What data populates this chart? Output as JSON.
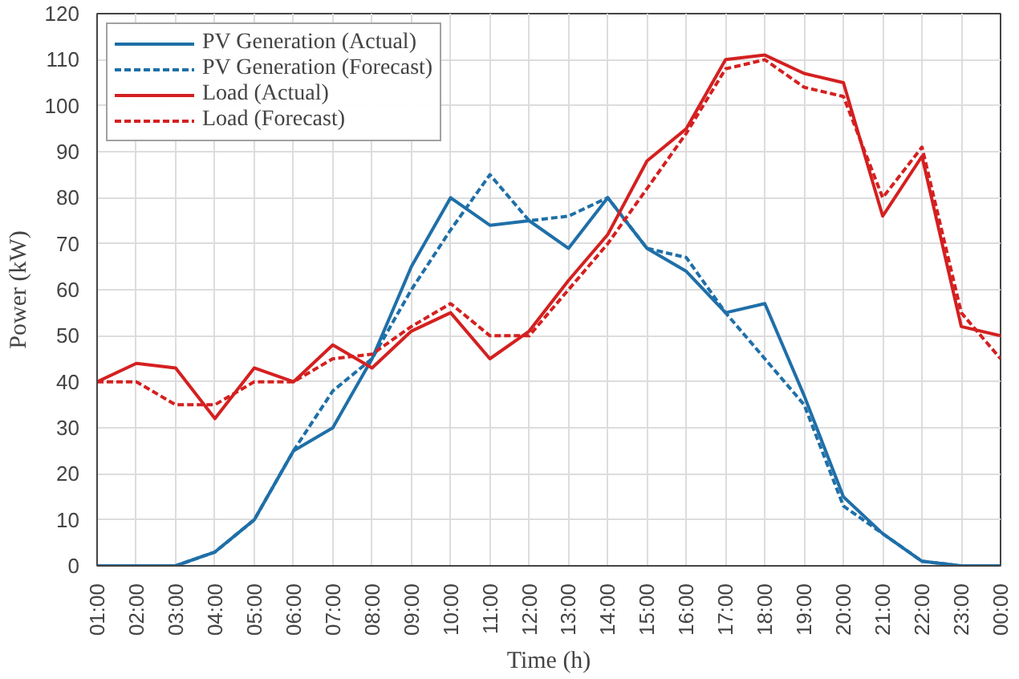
{
  "chart_data": {
    "type": "line",
    "xlabel": "Time (h)",
    "ylabel": "Power (kW)",
    "categories": [
      "01:00",
      "02:00",
      "03:00",
      "04:00",
      "05:00",
      "06:00",
      "07:00",
      "08:00",
      "09:00",
      "10:00",
      "11:00",
      "12:00",
      "13:00",
      "14:00",
      "15:00",
      "16:00",
      "17:00",
      "18:00",
      "19:00",
      "20:00",
      "21:00",
      "22:00",
      "23:00",
      "00:00"
    ],
    "series": [
      {
        "name": "PV Generation (Actual)",
        "color": "#1f6fa8",
        "line_style": "solid",
        "values": [
          0,
          0,
          0,
          3,
          10,
          25,
          30,
          45,
          65,
          80,
          74,
          75,
          69,
          80,
          69,
          64,
          55,
          57,
          37,
          15,
          7,
          1,
          0,
          0
        ]
      },
      {
        "name": "PV Generation (Forecast)",
        "color": "#1f6fa8",
        "line_style": "dashed",
        "values": [
          0,
          0,
          0,
          3,
          10,
          25,
          38,
          45,
          60,
          73,
          85,
          75,
          76,
          80,
          69,
          67,
          55,
          45,
          35,
          13,
          7,
          1,
          0,
          0
        ]
      },
      {
        "name": "Load (Actual)",
        "color": "#d42020",
        "line_style": "solid",
        "values": [
          40,
          44,
          43,
          32,
          43,
          40,
          48,
          43,
          51,
          55,
          45,
          51,
          62,
          72,
          88,
          95,
          110,
          111,
          107,
          105,
          76,
          89,
          52,
          50
        ]
      },
      {
        "name": "Load (Forecast)",
        "color": "#d42020",
        "line_style": "dashed",
        "values": [
          40,
          40,
          35,
          35,
          40,
          40,
          45,
          46,
          52,
          57,
          50,
          50,
          60,
          70,
          82,
          94,
          108,
          110,
          104,
          102,
          80,
          91,
          55,
          45
        ]
      }
    ],
    "ylim": [
      0,
      120
    ],
    "yticks": [
      0,
      10,
      20,
      30,
      40,
      50,
      60,
      70,
      80,
      90,
      100,
      110,
      120
    ],
    "grid": true,
    "legend": "top left"
  }
}
